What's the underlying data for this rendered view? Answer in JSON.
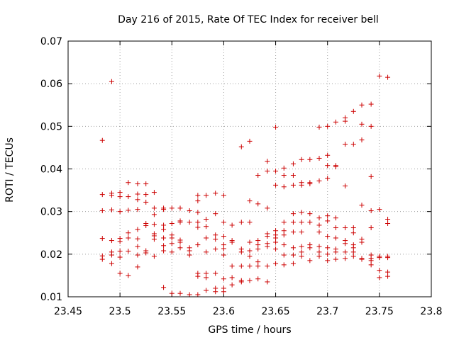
{
  "chart_data": {
    "type": "scatter",
    "title": "Day 216 of 2015, Rate Of TEC Index for receiver bell",
    "xlabel": "GPS time / hours",
    "ylabel": "ROTI / TECUs",
    "xlim": [
      23.45,
      23.8
    ],
    "ylim": [
      0.01,
      0.07
    ],
    "x_ticks": [
      "23.45",
      "23.5",
      "23.55",
      "23.6",
      "23.65",
      "23.7",
      "23.75",
      "23.8"
    ],
    "y_ticks": [
      "0.01",
      "0.02",
      "0.03",
      "0.04",
      "0.05",
      "0.06",
      "0.07"
    ],
    "grid": true,
    "marker": "+",
    "color": "#cc0000",
    "series": [
      {
        "name": "ROTI",
        "points": [
          [
            23.483,
            0.0467
          ],
          [
            23.483,
            0.034
          ],
          [
            23.483,
            0.0302
          ],
          [
            23.483,
            0.0237
          ],
          [
            23.483,
            0.0196
          ],
          [
            23.483,
            0.0188
          ],
          [
            23.492,
            0.0605
          ],
          [
            23.492,
            0.0343
          ],
          [
            23.492,
            0.0338
          ],
          [
            23.492,
            0.0304
          ],
          [
            23.492,
            0.0232
          ],
          [
            23.492,
            0.0205
          ],
          [
            23.492,
            0.0198
          ],
          [
            23.492,
            0.0178
          ],
          [
            23.5,
            0.0345
          ],
          [
            23.5,
            0.0335
          ],
          [
            23.5,
            0.03
          ],
          [
            23.5,
            0.0237
          ],
          [
            23.5,
            0.023
          ],
          [
            23.5,
            0.0207
          ],
          [
            23.5,
            0.0193
          ],
          [
            23.5,
            0.0155
          ],
          [
            23.508,
            0.0368
          ],
          [
            23.508,
            0.0335
          ],
          [
            23.508,
            0.0303
          ],
          [
            23.508,
            0.025
          ],
          [
            23.508,
            0.0238
          ],
          [
            23.508,
            0.0207
          ],
          [
            23.508,
            0.015
          ],
          [
            23.517,
            0.0365
          ],
          [
            23.517,
            0.0341
          ],
          [
            23.517,
            0.0328
          ],
          [
            23.517,
            0.0305
          ],
          [
            23.517,
            0.0258
          ],
          [
            23.517,
            0.0236
          ],
          [
            23.517,
            0.0218
          ],
          [
            23.517,
            0.0198
          ],
          [
            23.517,
            0.017
          ],
          [
            23.525,
            0.0365
          ],
          [
            23.525,
            0.034
          ],
          [
            23.525,
            0.0322
          ],
          [
            23.525,
            0.0272
          ],
          [
            23.525,
            0.0267
          ],
          [
            23.525,
            0.0208
          ],
          [
            23.525,
            0.0203
          ],
          [
            23.533,
            0.0345
          ],
          [
            23.533,
            0.0308
          ],
          [
            23.533,
            0.0293
          ],
          [
            23.533,
            0.027
          ],
          [
            23.533,
            0.0248
          ],
          [
            23.533,
            0.0243
          ],
          [
            23.533,
            0.0235
          ],
          [
            23.533,
            0.0195
          ],
          [
            23.542,
            0.0305
          ],
          [
            23.542,
            0.0308
          ],
          [
            23.542,
            0.0268
          ],
          [
            23.542,
            0.0258
          ],
          [
            23.542,
            0.0238
          ],
          [
            23.542,
            0.022
          ],
          [
            23.542,
            0.0208
          ],
          [
            23.542,
            0.0122
          ],
          [
            23.55,
            0.0308
          ],
          [
            23.55,
            0.0272
          ],
          [
            23.55,
            0.0245
          ],
          [
            23.55,
            0.0238
          ],
          [
            23.55,
            0.0225
          ],
          [
            23.55,
            0.0205
          ],
          [
            23.55,
            0.0108
          ],
          [
            23.558,
            0.0308
          ],
          [
            23.558,
            0.0278
          ],
          [
            23.558,
            0.0275
          ],
          [
            23.558,
            0.0233
          ],
          [
            23.558,
            0.0228
          ],
          [
            23.558,
            0.0215
          ],
          [
            23.558,
            0.0108
          ],
          [
            23.567,
            0.0302
          ],
          [
            23.567,
            0.0275
          ],
          [
            23.567,
            0.0215
          ],
          [
            23.567,
            0.0208
          ],
          [
            23.567,
            0.0198
          ],
          [
            23.567,
            0.0105
          ],
          [
            23.575,
            0.0338
          ],
          [
            23.575,
            0.0325
          ],
          [
            23.575,
            0.0298
          ],
          [
            23.575,
            0.0275
          ],
          [
            23.575,
            0.0263
          ],
          [
            23.575,
            0.0222
          ],
          [
            23.575,
            0.0155
          ],
          [
            23.575,
            0.0148
          ],
          [
            23.575,
            0.0105
          ],
          [
            23.583,
            0.0338
          ],
          [
            23.583,
            0.0282
          ],
          [
            23.583,
            0.0265
          ],
          [
            23.583,
            0.0238
          ],
          [
            23.583,
            0.0205
          ],
          [
            23.583,
            0.0155
          ],
          [
            23.583,
            0.0145
          ],
          [
            23.583,
            0.0115
          ],
          [
            23.592,
            0.0343
          ],
          [
            23.592,
            0.0295
          ],
          [
            23.592,
            0.0245
          ],
          [
            23.592,
            0.0235
          ],
          [
            23.592,
            0.0212
          ],
          [
            23.592,
            0.0155
          ],
          [
            23.592,
            0.012
          ],
          [
            23.592,
            0.0112
          ],
          [
            23.6,
            0.0338
          ],
          [
            23.6,
            0.0275
          ],
          [
            23.6,
            0.0242
          ],
          [
            23.6,
            0.0222
          ],
          [
            23.6,
            0.0213
          ],
          [
            23.6,
            0.0198
          ],
          [
            23.6,
            0.0142
          ],
          [
            23.6,
            0.012
          ],
          [
            23.6,
            0.0112
          ],
          [
            23.608,
            0.0268
          ],
          [
            23.608,
            0.0232
          ],
          [
            23.608,
            0.0228
          ],
          [
            23.608,
            0.0172
          ],
          [
            23.608,
            0.0145
          ],
          [
            23.608,
            0.0128
          ],
          [
            23.617,
            0.0452
          ],
          [
            23.617,
            0.0275
          ],
          [
            23.617,
            0.0212
          ],
          [
            23.617,
            0.0205
          ],
          [
            23.617,
            0.0172
          ],
          [
            23.617,
            0.0138
          ],
          [
            23.617,
            0.0135
          ],
          [
            23.625,
            0.0465
          ],
          [
            23.625,
            0.0325
          ],
          [
            23.625,
            0.0275
          ],
          [
            23.625,
            0.0228
          ],
          [
            23.625,
            0.0208
          ],
          [
            23.625,
            0.0195
          ],
          [
            23.625,
            0.0172
          ],
          [
            23.625,
            0.0138
          ],
          [
            23.633,
            0.0385
          ],
          [
            23.633,
            0.0318
          ],
          [
            23.633,
            0.0232
          ],
          [
            23.633,
            0.0222
          ],
          [
            23.633,
            0.0212
          ],
          [
            23.633,
            0.0182
          ],
          [
            23.633,
            0.0172
          ],
          [
            23.633,
            0.0142
          ],
          [
            23.642,
            0.0418
          ],
          [
            23.642,
            0.0395
          ],
          [
            23.642,
            0.0308
          ],
          [
            23.642,
            0.0248
          ],
          [
            23.642,
            0.0242
          ],
          [
            23.642,
            0.0225
          ],
          [
            23.642,
            0.0218
          ],
          [
            23.642,
            0.0172
          ],
          [
            23.642,
            0.0135
          ],
          [
            23.65,
            0.0498
          ],
          [
            23.65,
            0.0395
          ],
          [
            23.65,
            0.0362
          ],
          [
            23.65,
            0.0255
          ],
          [
            23.65,
            0.0245
          ],
          [
            23.65,
            0.0238
          ],
          [
            23.65,
            0.0228
          ],
          [
            23.65,
            0.0212
          ],
          [
            23.65,
            0.0178
          ],
          [
            23.658,
            0.0402
          ],
          [
            23.658,
            0.0385
          ],
          [
            23.658,
            0.0358
          ],
          [
            23.658,
            0.0275
          ],
          [
            23.658,
            0.0255
          ],
          [
            23.658,
            0.0245
          ],
          [
            23.658,
            0.0222
          ],
          [
            23.658,
            0.0198
          ],
          [
            23.658,
            0.0175
          ],
          [
            23.667,
            0.0412
          ],
          [
            23.667,
            0.0385
          ],
          [
            23.667,
            0.0362
          ],
          [
            23.667,
            0.0295
          ],
          [
            23.667,
            0.0275
          ],
          [
            23.667,
            0.0252
          ],
          [
            23.667,
            0.0215
          ],
          [
            23.667,
            0.0198
          ],
          [
            23.667,
            0.0178
          ],
          [
            23.675,
            0.0422
          ],
          [
            23.675,
            0.0368
          ],
          [
            23.675,
            0.0362
          ],
          [
            23.675,
            0.0298
          ],
          [
            23.675,
            0.0275
          ],
          [
            23.675,
            0.0252
          ],
          [
            23.675,
            0.0218
          ],
          [
            23.675,
            0.0205
          ],
          [
            23.675,
            0.0195
          ],
          [
            23.683,
            0.0422
          ],
          [
            23.683,
            0.0368
          ],
          [
            23.683,
            0.0365
          ],
          [
            23.683,
            0.0295
          ],
          [
            23.683,
            0.0275
          ],
          [
            23.683,
            0.0222
          ],
          [
            23.683,
            0.0215
          ],
          [
            23.683,
            0.0185
          ],
          [
            23.692,
            0.0498
          ],
          [
            23.692,
            0.0425
          ],
          [
            23.692,
            0.0372
          ],
          [
            23.692,
            0.0285
          ],
          [
            23.692,
            0.0268
          ],
          [
            23.692,
            0.0252
          ],
          [
            23.692,
            0.0218
          ],
          [
            23.692,
            0.0205
          ],
          [
            23.692,
            0.0195
          ],
          [
            23.7,
            0.05
          ],
          [
            23.7,
            0.0432
          ],
          [
            23.7,
            0.0408
          ],
          [
            23.7,
            0.0378
          ],
          [
            23.7,
            0.029
          ],
          [
            23.7,
            0.0278
          ],
          [
            23.7,
            0.0242
          ],
          [
            23.7,
            0.0215
          ],
          [
            23.7,
            0.02
          ],
          [
            23.7,
            0.0185
          ],
          [
            23.708,
            0.051
          ],
          [
            23.708,
            0.0408
          ],
          [
            23.708,
            0.0405
          ],
          [
            23.708,
            0.0285
          ],
          [
            23.708,
            0.0262
          ],
          [
            23.708,
            0.0238
          ],
          [
            23.708,
            0.0212
          ],
          [
            23.708,
            0.0205
          ],
          [
            23.708,
            0.0188
          ],
          [
            23.717,
            0.052
          ],
          [
            23.717,
            0.0512
          ],
          [
            23.717,
            0.0458
          ],
          [
            23.717,
            0.036
          ],
          [
            23.717,
            0.0262
          ],
          [
            23.717,
            0.0232
          ],
          [
            23.717,
            0.0225
          ],
          [
            23.717,
            0.0205
          ],
          [
            23.717,
            0.019
          ],
          [
            23.725,
            0.0535
          ],
          [
            23.725,
            0.0458
          ],
          [
            23.725,
            0.0262
          ],
          [
            23.725,
            0.025
          ],
          [
            23.725,
            0.0222
          ],
          [
            23.725,
            0.0215
          ],
          [
            23.725,
            0.0205
          ],
          [
            23.725,
            0.0195
          ],
          [
            23.733,
            0.055
          ],
          [
            23.733,
            0.0505
          ],
          [
            23.733,
            0.0468
          ],
          [
            23.733,
            0.0315
          ],
          [
            23.733,
            0.0235
          ],
          [
            23.733,
            0.0228
          ],
          [
            23.733,
            0.019
          ],
          [
            23.733,
            0.0188
          ],
          [
            23.742,
            0.0552
          ],
          [
            23.742,
            0.05
          ],
          [
            23.742,
            0.0382
          ],
          [
            23.742,
            0.0302
          ],
          [
            23.742,
            0.0262
          ],
          [
            23.742,
            0.0198
          ],
          [
            23.742,
            0.019
          ],
          [
            23.742,
            0.0185
          ],
          [
            23.742,
            0.0175
          ],
          [
            23.75,
            0.0618
          ],
          [
            23.75,
            0.0305
          ],
          [
            23.75,
            0.0195
          ],
          [
            23.75,
            0.0192
          ],
          [
            23.75,
            0.0162
          ],
          [
            23.75,
            0.0145
          ],
          [
            23.758,
            0.0615
          ],
          [
            23.758,
            0.0282
          ],
          [
            23.758,
            0.0272
          ],
          [
            23.758,
            0.0195
          ],
          [
            23.758,
            0.0192
          ],
          [
            23.758,
            0.0158
          ],
          [
            23.758,
            0.0148
          ]
        ]
      }
    ]
  }
}
